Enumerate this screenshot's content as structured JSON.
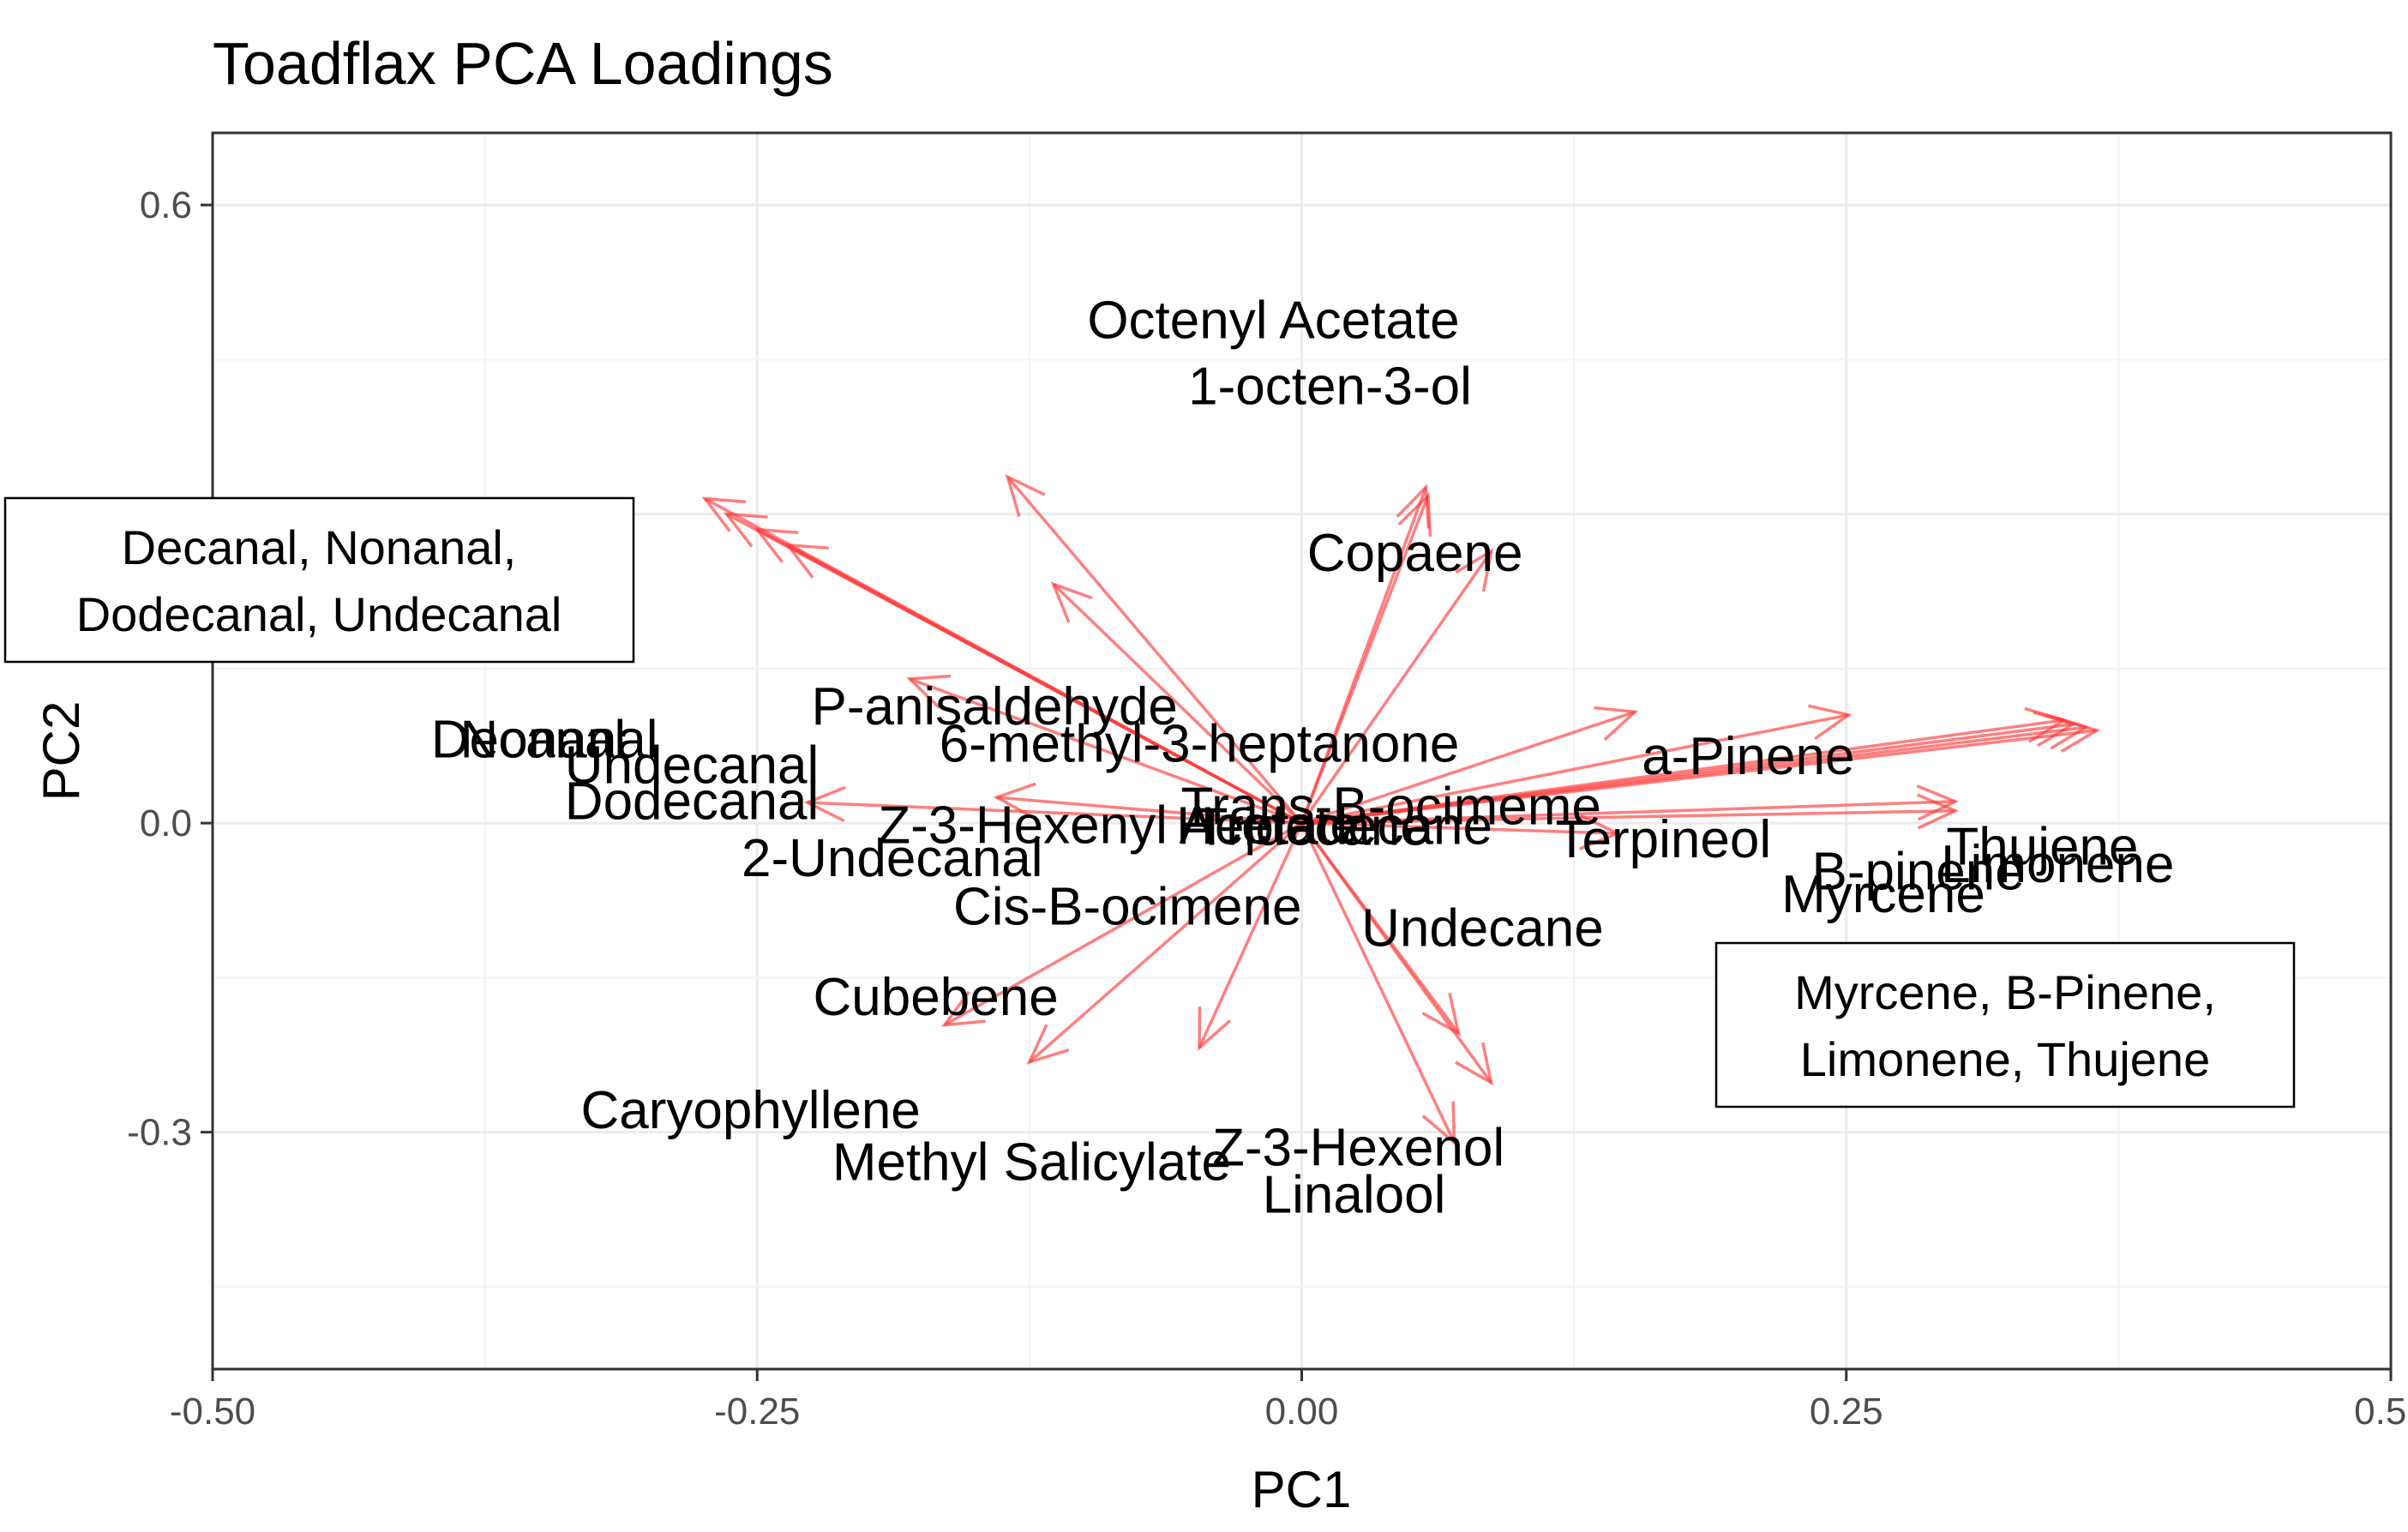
{
  "chart_data": {
    "type": "biplot-loadings",
    "title": "Toadflax PCA Loadings",
    "xlabel": "PC1",
    "ylabel": "PC2",
    "xlim": [
      -0.5,
      0.5
    ],
    "ylim": [
      -0.53,
      0.67
    ],
    "xticks": [
      -0.5,
      -0.25,
      0.0,
      0.25,
      0.5
    ],
    "xtick_labels": [
      "-0.50",
      "-0.25",
      "0.00",
      "0.25",
      "0.50"
    ],
    "yticks": [
      -0.3,
      0.0,
      0.6
    ],
    "ytick_labels": [
      "-0.3",
      "0.0",
      "0.6"
    ],
    "grid": true,
    "arrow_color": "#ff3b3b",
    "loadings": [
      {
        "name": "Decanal",
        "x": -0.274,
        "y": 0.315
      },
      {
        "name": "Nonanal",
        "x": -0.264,
        "y": 0.3
      },
      {
        "name": "Dodecanal",
        "x": -0.25,
        "y": 0.285
      },
      {
        "name": "Undecanal",
        "x": -0.236,
        "y": 0.27
      },
      {
        "name": "P-anisaldehyde",
        "x": -0.135,
        "y": 0.336
      },
      {
        "name": "6-methyl-3-heptanone",
        "x": -0.114,
        "y": 0.232
      },
      {
        "name": "Copaene",
        "x": 0.057,
        "y": 0.326
      },
      {
        "name": "Octenyl Acetate",
        "x": 0.058,
        "y": 0.318
      },
      {
        "name": "1-octen-3-ol",
        "x": 0.087,
        "y": 0.264
      },
      {
        "name": "2-Undecanal",
        "x": -0.18,
        "y": 0.14
      },
      {
        "name": "Trans-B-ocimeme",
        "x": 0.153,
        "y": 0.108
      },
      {
        "name": "Terpineol",
        "x": 0.251,
        "y": 0.105
      },
      {
        "name": "a-Pinene",
        "x": 0.3,
        "y": 0.021
      },
      {
        "name": "Myrcene",
        "x": 0.35,
        "y": 0.1
      },
      {
        "name": "B-pinene",
        "x": 0.354,
        "y": 0.096
      },
      {
        "name": "Limonene",
        "x": 0.36,
        "y": 0.093
      },
      {
        "name": "Thujene",
        "x": 0.365,
        "y": 0.09
      },
      {
        "name": "Z-3-Hexenyl Acetate",
        "x": 0.3,
        "y": 0.012
      },
      {
        "name": "Cis-B-ocimene",
        "x": -0.227,
        "y": 0.02
      },
      {
        "name": "Tridecane",
        "x": -0.14,
        "y": 0.025
      },
      {
        "name": "Undecane",
        "x": 0.145,
        "y": -0.01
      },
      {
        "name": "Cubebene",
        "x": -0.164,
        "y": -0.196
      },
      {
        "name": "Caryophyllene",
        "x": -0.125,
        "y": -0.232
      },
      {
        "name": "Methyl Salicylate",
        "x": -0.047,
        "y": -0.218
      },
      {
        "name": "Z-3-Hexenol",
        "x": 0.072,
        "y": -0.204
      },
      {
        "name": "Linalool",
        "x": 0.087,
        "y": -0.252
      },
      {
        "name": "Heptadecane",
        "x": 0.07,
        "y": -0.31
      }
    ],
    "labels": [
      {
        "text": "Octenyl Acetate",
        "x": -0.013,
        "y": 0.489
      },
      {
        "text": "1-octen-3-ol",
        "x": 0.013,
        "y": 0.425
      },
      {
        "text": "Copaene",
        "x": 0.052,
        "y": 0.263
      },
      {
        "text": "P-anisaldehyde",
        "x": -0.141,
        "y": 0.114
      },
      {
        "text": "6-methyl-3-heptanone",
        "x": -0.047,
        "y": 0.078
      },
      {
        "text": "Decanal",
        "x": -0.355,
        "y": 0.082
      },
      {
        "text": "Nonanal",
        "x": -0.341,
        "y": 0.082
      },
      {
        "text": "Undecanal",
        "x": -0.28,
        "y": 0.057
      },
      {
        "text": "Dodecanal",
        "x": -0.28,
        "y": 0.022
      },
      {
        "text": "Trans-B-ocimeme",
        "x": 0.041,
        "y": 0.017
      },
      {
        "text": "Z-3-Hexenyl Acetate",
        "x": -0.084,
        "y": -0.001
      },
      {
        "text": "Tridecane",
        "x": 0.005,
        "y": -0.003
      },
      {
        "text": "Heptadecane",
        "x": 0.015,
        "y": -0.002
      },
      {
        "text": "Terpineol",
        "x": 0.166,
        "y": -0.015
      },
      {
        "text": "2-Undecanal",
        "x": -0.188,
        "y": -0.033
      },
      {
        "text": "a-Pinene",
        "x": 0.205,
        "y": 0.066
      },
      {
        "text": "Thujene",
        "x": 0.34,
        "y": -0.022
      },
      {
        "text": "Limonene",
        "x": 0.347,
        "y": -0.039
      },
      {
        "text": "B-pinene",
        "x": 0.283,
        "y": -0.046
      },
      {
        "text": "Myrcene",
        "x": 0.267,
        "y": -0.068
      },
      {
        "text": "Cis-B-ocimene",
        "x": -0.08,
        "y": -0.08
      },
      {
        "text": "Undecane",
        "x": 0.083,
        "y": -0.101
      },
      {
        "text": "Cubebene",
        "x": -0.168,
        "y": -0.168
      },
      {
        "text": "Caryophyllene",
        "x": -0.253,
        "y": -0.278
      },
      {
        "text": "Methyl Salicylate",
        "x": -0.124,
        "y": -0.328
      },
      {
        "text": "Z-3-Hexenol",
        "x": 0.026,
        "y": -0.314
      },
      {
        "text": "Linalool",
        "x": 0.024,
        "y": -0.36
      }
    ],
    "annotations": [
      {
        "lines": [
          "Decanal, Nonanal,",
          "Dodecanal, Undecanal"
        ]
      },
      {
        "lines": [
          "Myrcene, B-Pinene,",
          "Limonene, Thujene"
        ]
      }
    ]
  }
}
